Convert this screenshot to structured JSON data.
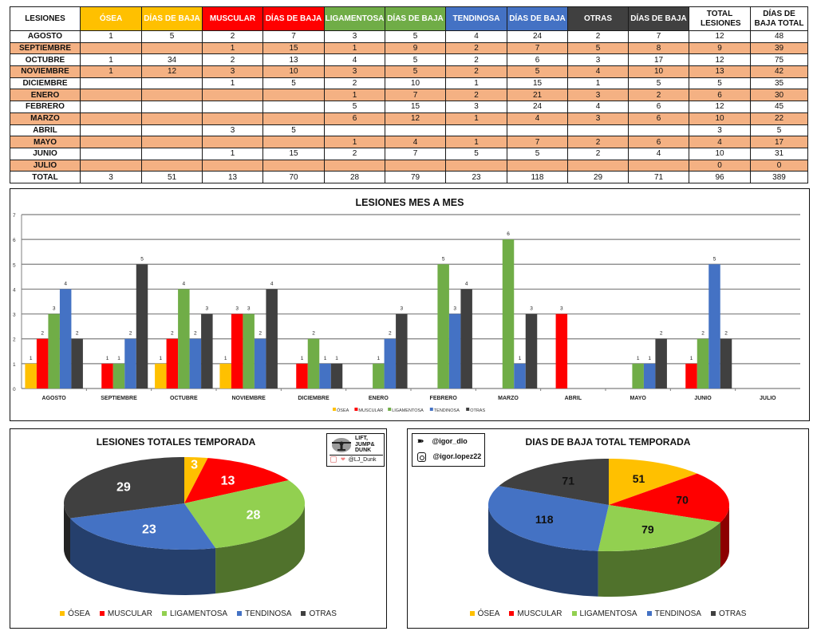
{
  "colors": {
    "osea": "#ffc000",
    "muscular": "#ff0000",
    "ligamentosa": "#70ad47",
    "ligamentosa_pie": "#92d050",
    "tendinosa": "#4472c4",
    "otras": "#404040",
    "row_alt": "#f4b183"
  },
  "table": {
    "headers": [
      "LESIONES",
      "ÓSEA",
      "DÍAS DE BAJA",
      "MUSCULAR",
      "DÍAS DE BAJA",
      "LIGAMENTOSA",
      "DÍAS DE BAJA",
      "TENDINOSA",
      "DÍAS DE BAJA",
      "OTRAS",
      "DÍAS DE BAJA",
      "TOTAL LESIONES",
      "DÍAS DE BAJA TOTAL"
    ],
    "header_colors": [
      "#ffffff",
      "#ffc000",
      "#ffc000",
      "#ff0000",
      "#ff0000",
      "#70ad47",
      "#70ad47",
      "#4472c4",
      "#4472c4",
      "#404040",
      "#404040",
      "#ffffff",
      "#ffffff"
    ],
    "rows": [
      [
        "AGOSTO",
        "1",
        "5",
        "2",
        "7",
        "3",
        "5",
        "4",
        "24",
        "2",
        "7",
        "12",
        "48"
      ],
      [
        "SEPTIEMBRE",
        "",
        "",
        "1",
        "15",
        "1",
        "9",
        "2",
        "7",
        "5",
        "8",
        "9",
        "39"
      ],
      [
        "OCTUBRE",
        "1",
        "34",
        "2",
        "13",
        "4",
        "5",
        "2",
        "6",
        "3",
        "17",
        "12",
        "75"
      ],
      [
        "NOVIEMBRE",
        "1",
        "12",
        "3",
        "10",
        "3",
        "5",
        "2",
        "5",
        "4",
        "10",
        "13",
        "42"
      ],
      [
        "DICIEMBRE",
        "",
        "",
        "1",
        "5",
        "2",
        "10",
        "1",
        "15",
        "1",
        "5",
        "5",
        "35"
      ],
      [
        "ENERO",
        "",
        "",
        "",
        "",
        "1",
        "7",
        "2",
        "21",
        "3",
        "2",
        "6",
        "30"
      ],
      [
        "FEBRERO",
        "",
        "",
        "",
        "",
        "5",
        "15",
        "3",
        "24",
        "4",
        "6",
        "12",
        "45"
      ],
      [
        "MARZO",
        "",
        "",
        "",
        "",
        "6",
        "12",
        "1",
        "4",
        "3",
        "6",
        "10",
        "22"
      ],
      [
        "ABRIL",
        "",
        "",
        "3",
        "5",
        "",
        "",
        "",
        "",
        "",
        "",
        "3",
        "5"
      ],
      [
        "MAYO",
        "",
        "",
        "",
        "",
        "1",
        "4",
        "1",
        "7",
        "2",
        "6",
        "4",
        "17"
      ],
      [
        "JUNIO",
        "",
        "",
        "1",
        "15",
        "2",
        "7",
        "5",
        "5",
        "2",
        "4",
        "10",
        "31"
      ],
      [
        "JULIO",
        "",
        "",
        "",
        "",
        "",
        "",
        "",
        "",
        "",
        "",
        "0",
        "0"
      ],
      [
        "TOTAL",
        "3",
        "51",
        "13",
        "70",
        "28",
        "79",
        "23",
        "118",
        "29",
        "71",
        "96",
        "389"
      ]
    ]
  },
  "chart_data": [
    {
      "type": "bar",
      "title": "LESIONES MES A MES",
      "xlabel": "",
      "ylabel": "",
      "ylim": [
        0,
        7
      ],
      "yticks": [
        "0",
        "1",
        "2",
        "3",
        "4",
        "5",
        "6",
        "7"
      ],
      "grid": true,
      "legend_position": "bottom",
      "categories": [
        "AGOSTO",
        "SEPTIEMBRE",
        "OCTUBRE",
        "NOVIEMBRE",
        "DICIEMBRE",
        "ENERO",
        "FEBRERO",
        "MARZO",
        "ABRIL",
        "MAYO",
        "JUNIO",
        "JULIO"
      ],
      "series": [
        {
          "name": "ÓSEA",
          "color": "#ffc000",
          "values": [
            1,
            null,
            1,
            1,
            null,
            null,
            null,
            null,
            null,
            null,
            null,
            null
          ]
        },
        {
          "name": "MUSCULAR",
          "color": "#ff0000",
          "values": [
            2,
            1,
            2,
            3,
            1,
            null,
            null,
            null,
            3,
            null,
            1,
            null
          ]
        },
        {
          "name": "LIGAMENTOSA",
          "color": "#70ad47",
          "values": [
            3,
            1,
            4,
            3,
            2,
            1,
            5,
            6,
            null,
            1,
            2,
            null
          ]
        },
        {
          "name": "TENDINOSA",
          "color": "#4472c4",
          "values": [
            4,
            2,
            2,
            2,
            1,
            2,
            3,
            1,
            null,
            1,
            5,
            null
          ]
        },
        {
          "name": "OTRAS",
          "color": "#404040",
          "values": [
            2,
            5,
            3,
            4,
            1,
            3,
            4,
            3,
            null,
            2,
            2,
            null
          ]
        }
      ]
    },
    {
      "type": "pie",
      "title": "LESIONES TOTALES TEMPORADA",
      "legend_position": "bottom",
      "labels": [
        "ÓSEA",
        "MUSCULAR",
        "LIGAMENTOSA",
        "TENDINOSA",
        "OTRAS"
      ],
      "values": [
        3,
        13,
        28,
        23,
        29
      ],
      "colors": [
        "#ffc000",
        "#ff0000",
        "#92d050",
        "#4472c4",
        "#404040"
      ],
      "label_color": "#ffffff"
    },
    {
      "type": "pie",
      "title": "DIAS DE BAJA TOTAL TEMPORADA",
      "legend_position": "bottom",
      "labels": [
        "ÓSEA",
        "MUSCULAR",
        "LIGAMENTOSA",
        "TENDINOSA",
        "OTRAS"
      ],
      "values": [
        51,
        70,
        79,
        118,
        71
      ],
      "colors": [
        "#ffc000",
        "#ff0000",
        "#92d050",
        "#4472c4",
        "#404040"
      ],
      "label_color": "#111111"
    }
  ],
  "badges": {
    "liftjump": {
      "line1": "LIFT,",
      "line2": "JUMP&",
      "line3": "DUNK",
      "handle": "@LJ_Dunk"
    },
    "igor": {
      "twitter": "@igor_dlo",
      "instagram": "@igor.lopez22"
    }
  }
}
